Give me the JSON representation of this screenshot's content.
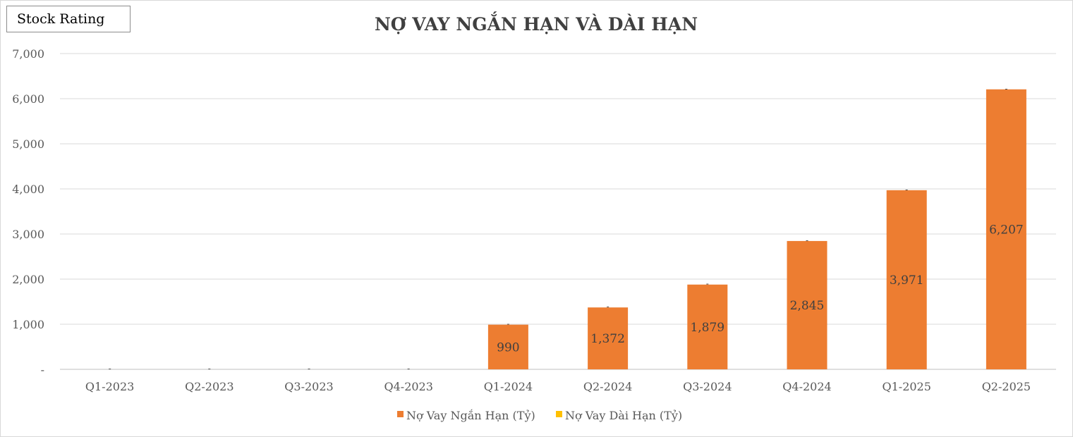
{
  "badge": {
    "label": "Stock Rating"
  },
  "chart_data": {
    "type": "bar",
    "stacked": true,
    "title": "NỢ VAY NGẮN HẠN VÀ DÀI HẠN",
    "xlabel": "",
    "ylabel": "",
    "ylim": [
      0,
      7000
    ],
    "yticks": [
      0,
      1000,
      2000,
      3000,
      4000,
      5000,
      6000,
      7000
    ],
    "ytick_labels": [
      "-",
      "1,000",
      "2,000",
      "3,000",
      "4,000",
      "5,000",
      "6,000",
      "7,000"
    ],
    "grid": true,
    "legend_position": "bottom",
    "categories": [
      "Q1-2023",
      "Q2-2023",
      "Q3-2023",
      "Q4-2023",
      "Q1-2024",
      "Q2-2024",
      "Q3-2024",
      "Q4-2024",
      "Q1-2025",
      "Q2-2025"
    ],
    "series": [
      {
        "name": "Nợ Vay Ngắn Hạn (Tỷ)",
        "color": "#ed7d31",
        "values": [
          0,
          0,
          0,
          0,
          990,
          1372,
          1879,
          2845,
          3971,
          6207
        ],
        "data_labels": [
          "",
          "",
          "",
          "",
          "990",
          "1,372",
          "1,879",
          "2,845",
          "3,971",
          "6,207"
        ]
      },
      {
        "name": "Nợ Vay Dài Hạn (Tỷ)",
        "color": "#ffc000",
        "values": [
          0,
          0,
          0,
          0,
          0,
          0,
          0,
          0,
          0,
          0
        ],
        "data_labels": [
          "-",
          "-",
          "-",
          "-",
          "-",
          "-",
          "-",
          "-",
          "-",
          "-"
        ]
      }
    ]
  }
}
